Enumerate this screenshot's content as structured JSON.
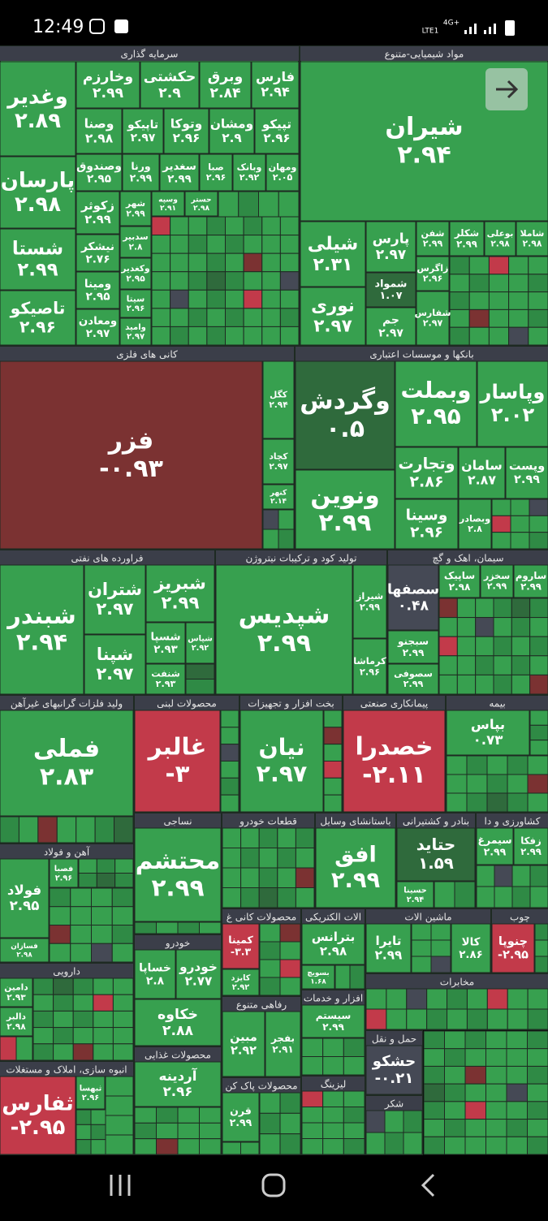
{
  "status_bar": {
    "time": "12:49",
    "network": "4G+",
    "carrier": "LTE1"
  },
  "sectors": [
    {
      "title": "سرمایه گذاری",
      "tiles": [
        {
          "name": "وغدیر",
          "value": "۲.۸۹"
        },
        {
          "name": "پارسان",
          "value": "۲.۹۸"
        },
        {
          "name": "شستا",
          "value": "۲.۹۹"
        },
        {
          "name": "تاصیکو",
          "value": "۲.۹۶"
        },
        {
          "name": "وخارزم",
          "value": "۲.۹۹"
        },
        {
          "name": "حکشتی",
          "value": "۲.۹"
        },
        {
          "name": "وبرق",
          "value": "۲.۸۴"
        },
        {
          "name": "فارس",
          "value": "۲.۹۴"
        },
        {
          "name": "وصنا",
          "value": "۲.۹۸"
        },
        {
          "name": "تاپیکو",
          "value": "۲.۹۷"
        },
        {
          "name": "وتوکا",
          "value": "۲.۹۶"
        },
        {
          "name": "ومشان",
          "value": "۲.۹"
        },
        {
          "name": "تپیکو",
          "value": "۲.۹۶"
        },
        {
          "name": "وصندوق",
          "value": "۲.۹۵"
        },
        {
          "name": "ورنا",
          "value": "۲.۹۹"
        },
        {
          "name": "سغدیر",
          "value": "۲.۹۹"
        },
        {
          "name": "صبا",
          "value": "۲.۹۶"
        },
        {
          "name": "وبانک",
          "value": "۲.۹۲"
        },
        {
          "name": "ومهان",
          "value": "۲.۰۵"
        },
        {
          "name": "زکوثر",
          "value": "۲.۹۹"
        },
        {
          "name": "نیشکر",
          "value": "۲.۷۶"
        },
        {
          "name": "ومینا",
          "value": "۲.۹۵"
        },
        {
          "name": "ومعادن",
          "value": "۲.۹۷"
        },
        {
          "name": "شهر",
          "value": "۲.۹۹"
        },
        {
          "name": "سدبیر",
          "value": "۲.۸"
        },
        {
          "name": "وکغدیر",
          "value": "۲.۹۵"
        },
        {
          "name": "سیتا",
          "value": "۲.۹۶"
        },
        {
          "name": "وامید",
          "value": "۲.۹۷"
        },
        {
          "name": "وسپه",
          "value": "۲.۹۱"
        },
        {
          "name": "حستر",
          "value": "۲.۹۸"
        }
      ]
    },
    {
      "title": "مواد شیمیایی-متنوع",
      "tiles": [
        {
          "name": "شیران",
          "value": "۲.۹۴"
        },
        {
          "name": "شیلی",
          "value": "۲.۳۱"
        },
        {
          "name": "نوری",
          "value": "۲.۹۷"
        },
        {
          "name": "پارس",
          "value": "۲.۹۷"
        },
        {
          "name": "شفن",
          "value": "۲.۹۹"
        },
        {
          "name": "شکلر",
          "value": "۲.۹۹"
        },
        {
          "name": "بوعلی",
          "value": "۲.۹۸"
        },
        {
          "name": "شاملا",
          "value": "۲.۹۸"
        },
        {
          "name": "شمواد",
          "value": "۱.۰۷"
        },
        {
          "name": "زاگرس",
          "value": "۲.۹۶"
        },
        {
          "name": "جم",
          "value": "۲.۹۷"
        },
        {
          "name": "شفارس",
          "value": "۲.۹۷"
        }
      ]
    },
    {
      "title": "کانی های فلزی",
      "tiles": [
        {
          "name": "فزر",
          "value": "-۰.۹۳"
        },
        {
          "name": "کگل",
          "value": "۲.۹۴"
        },
        {
          "name": "کچاد",
          "value": "۲.۹۷"
        },
        {
          "name": "کنهر",
          "value": "۲.۱۴"
        }
      ]
    },
    {
      "title": "بانکها و موسسات اعتباری",
      "tiles": [
        {
          "name": "وگردش",
          "value": "۰.۵"
        },
        {
          "name": "ونوین",
          "value": "۲.۹۹"
        },
        {
          "name": "وبملت",
          "value": "۲.۹۵"
        },
        {
          "name": "وپاسار",
          "value": "۲.۰۲"
        },
        {
          "name": "وتجارت",
          "value": "۲.۸۶"
        },
        {
          "name": "سامان",
          "value": "۲.۸۷"
        },
        {
          "name": "وپست",
          "value": "۲.۹۹"
        },
        {
          "name": "وسینا",
          "value": "۲.۹۶"
        },
        {
          "name": "وبصادر",
          "value": "۲.۸"
        }
      ]
    },
    {
      "title": "فراورده های نفتی",
      "tiles": [
        {
          "name": "شبندر",
          "value": "۲.۹۴"
        },
        {
          "name": "شتران",
          "value": "۲.۹۷"
        },
        {
          "name": "شپنا",
          "value": "۲.۹۷"
        },
        {
          "name": "شبریز",
          "value": "۲.۹۹"
        },
        {
          "name": "شسپا",
          "value": "۲.۹۳"
        },
        {
          "name": "شپاس",
          "value": "۲.۹۲"
        },
        {
          "name": "شنفت",
          "value": "۲.۹۳"
        }
      ]
    },
    {
      "title": "تولید کود و ترکیبات نیتروژن",
      "tiles": [
        {
          "name": "شپدیس",
          "value": "۲.۹۹"
        },
        {
          "name": "شیراز",
          "value": "۲.۹۹"
        },
        {
          "name": "کرماشا",
          "value": "۲.۹۶"
        }
      ]
    },
    {
      "title": "سیمان، اهک و گچ",
      "tiles": [
        {
          "name": "سصفها",
          "value": "۰.۴۸"
        },
        {
          "name": "سبجنو",
          "value": "۲.۹۹"
        },
        {
          "name": "سصوفی",
          "value": "۲.۹۹"
        },
        {
          "name": "ساپیک",
          "value": "۲.۹۸"
        },
        {
          "name": "سخزر",
          "value": "۲.۹۹"
        },
        {
          "name": "ساروم",
          "value": "۲.۹۹"
        }
      ]
    },
    {
      "title": "ولید فلزات گرانبهای غیرآهن",
      "tiles": [
        {
          "name": "فملی",
          "value": "۲.۸۳"
        }
      ]
    },
    {
      "title": "محصولات لبنی",
      "tiles": [
        {
          "name": "غالبر",
          "value": "-۳"
        }
      ]
    },
    {
      "title": "بخت افزار و تجهیزات",
      "tiles": [
        {
          "name": "نیان",
          "value": "۲.۹۷"
        }
      ]
    },
    {
      "title": "پیمانکاری صنعتی",
      "tiles": [
        {
          "name": "خصدرا",
          "value": "-۲.۱۱"
        }
      ]
    },
    {
      "title": "بیمه",
      "tiles": [
        {
          "name": "بپاس",
          "value": "۰.۷۳"
        }
      ]
    },
    {
      "title": "آهن و فولاد",
      "tiles": [
        {
          "name": "فولاد",
          "value": "۲.۹۵"
        },
        {
          "name": "فصبا",
          "value": "۲.۹۶"
        },
        {
          "name": "فسازان",
          "value": "۲.۹۸"
        }
      ]
    },
    {
      "title": "نساجی",
      "tiles": [
        {
          "name": "محتشم",
          "value": "۲.۹۹"
        }
      ]
    },
    {
      "title": "قطعات خودرو",
      "tiles": []
    },
    {
      "title": "باستانشای وسایل",
      "tiles": [
        {
          "name": "افق",
          "value": "۲.۹۹"
        }
      ]
    },
    {
      "title": "بنادر و کشتیرانی",
      "tiles": [
        {
          "name": "حتاید",
          "value": "۱.۵۹"
        },
        {
          "name": "حسینا",
          "value": "۲.۹۴"
        }
      ]
    },
    {
      "title": "کشاورزی و دا",
      "tiles": [
        {
          "name": "سیمرغ",
          "value": "۲.۹۹"
        },
        {
          "name": "زفکا",
          "value": "۲.۹۹"
        }
      ]
    },
    {
      "title": "خودرو",
      "tiles": [
        {
          "name": "خساپا",
          "value": "۲.۸"
        },
        {
          "name": "خودرو",
          "value": "۲.۷۷"
        },
        {
          "name": "خکاوه",
          "value": "۲.۸۸"
        }
      ]
    },
    {
      "title": "دارویی",
      "tiles": [
        {
          "name": "دامین",
          "value": "۲.۹۳"
        },
        {
          "name": "دالبر",
          "value": "۲.۹۸"
        }
      ]
    },
    {
      "title": "انبوه سازی، املاک و مستغلات",
      "tiles": [
        {
          "name": "ثفارس",
          "value": "-۲.۹۵"
        },
        {
          "name": "ثبهسا",
          "value": "۲.۹۶"
        }
      ]
    },
    {
      "title": "محصولات کانی غ",
      "tiles": [
        {
          "name": "کمینا",
          "value": "-۳.۳"
        },
        {
          "name": "کایزد",
          "value": "۲.۹۲"
        }
      ]
    },
    {
      "title": "الات الکتریکی",
      "tiles": [
        {
          "name": "بترانس",
          "value": "۲.۹۸"
        },
        {
          "name": "بسویچ",
          "value": "۱.۶۸"
        }
      ]
    },
    {
      "title": "ماشین الات",
      "tiles": [
        {
          "name": "تایرا",
          "value": "۲.۹۹"
        },
        {
          "name": "کالا",
          "value": "۲.۸۶"
        }
      ]
    },
    {
      "title": "چوب",
      "tiles": [
        {
          "name": "چنوپا",
          "value": "-۲.۹۵"
        }
      ]
    },
    {
      "title": "رفاهی متنوع",
      "tiles": [
        {
          "name": "مبین",
          "value": "۲.۹۲"
        },
        {
          "name": "بفجر",
          "value": "۲.۹۱"
        }
      ]
    },
    {
      "title": "افزار و خدمات",
      "tiles": [
        {
          "name": "سیستم",
          "value": "۲.۹۹"
        }
      ]
    },
    {
      "title": "محصولات غذایی",
      "tiles": [
        {
          "name": "آردینه",
          "value": "۲.۹۶"
        }
      ]
    },
    {
      "title": "محصولات پاک کن",
      "tiles": [
        {
          "name": "قرن",
          "value": "۲.۹۹"
        }
      ]
    },
    {
      "title": "لیزینگ",
      "tiles": []
    },
    {
      "title": "حمل و نقل",
      "tiles": [
        {
          "name": "حشکو",
          "value": "-۰.۲۱"
        }
      ]
    },
    {
      "title": "شکر",
      "tiles": []
    },
    {
      "title": "مخابرات",
      "tiles": []
    }
  ]
}
